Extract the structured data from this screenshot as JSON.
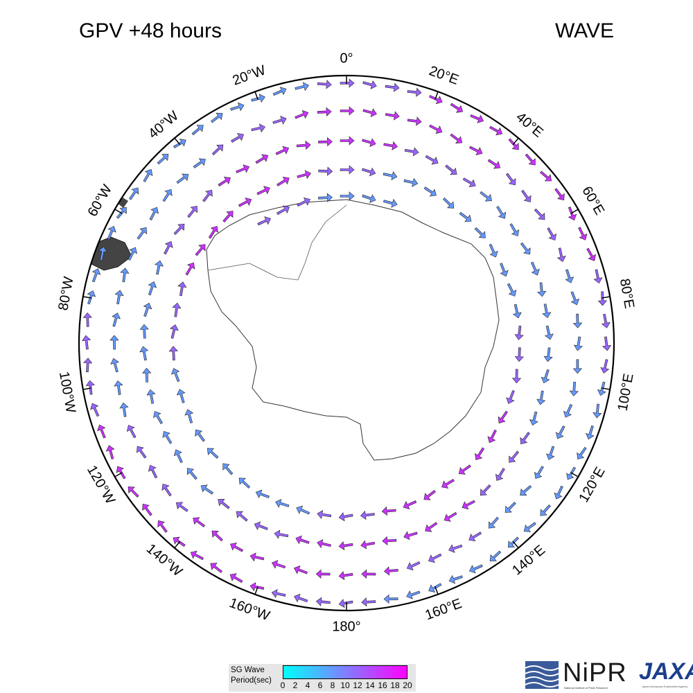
{
  "header": {
    "title_left": "GPV +48 hours",
    "title_right": "WAVE"
  },
  "map": {
    "projection": "south-polar-stereographic",
    "meridian_labels": [
      "0°",
      "20°E",
      "40°E",
      "60°E",
      "80°E",
      "100°E",
      "120°E",
      "140°E",
      "160°E",
      "180°",
      "160°W",
      "140°W",
      "120°W",
      "100°W",
      "80°W",
      "60°W",
      "40°W",
      "20°W"
    ],
    "coastline_color": "#333333",
    "outline_color": "#000000"
  },
  "legend": {
    "title": "SG Wave\nPeriod(sec)",
    "ticks": [
      "0",
      "2",
      "4",
      "6",
      "8",
      "10",
      "12",
      "14",
      "16",
      "18",
      "20"
    ],
    "colors": [
      "#00ffff",
      "#33ccff",
      "#6699ff",
      "#9966ff",
      "#cc33ff",
      "#ff00ff"
    ]
  },
  "logos": {
    "nipr": "NiPR",
    "nipr_sub": "National Institute of Polar Research",
    "jaxa": "JAXA",
    "jaxa_sub": "Japan Aerospace Exploration Agency"
  }
}
